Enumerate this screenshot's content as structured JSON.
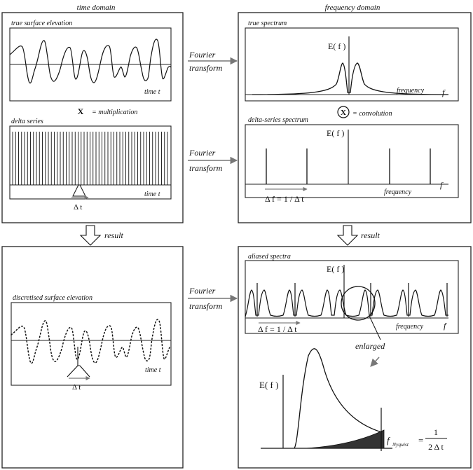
{
  "headers": {
    "time_domain": "time domain",
    "frequency_domain": "frequency domain"
  },
  "panels": {
    "true_surface": {
      "title": "true  surface elevation",
      "axis_label": "time t"
    },
    "delta_series": {
      "title": "delta  series",
      "axis_label": "time t",
      "spacing_label": "Δ t"
    },
    "true_spectrum": {
      "title": "true  spectrum",
      "axis_label": "frequency",
      "f_symbol": "f",
      "ef_label": "E( f )"
    },
    "delta_spectrum": {
      "title": "delta-series  spectrum",
      "axis_label": "frequency",
      "f_symbol": "f",
      "ef_label": "E( f )",
      "spacing_label": "Δ  f = 1 / Δ  t"
    },
    "discretised": {
      "title": "discretised  surface  elevation",
      "axis_label": "time t",
      "spacing_label": "Δ t"
    },
    "aliased": {
      "title": "aliased  spectra",
      "axis_label": "frequency",
      "f_symbol": "f",
      "ef_label": "E( f )",
      "spacing_label": "Δ  f = 1 / Δ  t",
      "enlarged_label": "enlarged",
      "inset_ef_label": "E( f )",
      "nyquist_symbol": "f",
      "nyquist_subscript": "Nyquist",
      "nyquist_equals": "=",
      "nyquist_numerator": "1",
      "nyquist_denominator": "2 Δ t"
    }
  },
  "operators": {
    "multiplication_symbol": "X",
    "multiplication_label": "= multiplication",
    "convolution_symbol": "X",
    "convolution_label": "= convolution"
  },
  "arrows": {
    "fourier_1": [
      "Fourier",
      "transform"
    ],
    "fourier_2": [
      "Fourier",
      "transform"
    ],
    "fourier_3": [
      "Fourier",
      "transform"
    ],
    "result_left": "result",
    "result_right": "result"
  }
}
